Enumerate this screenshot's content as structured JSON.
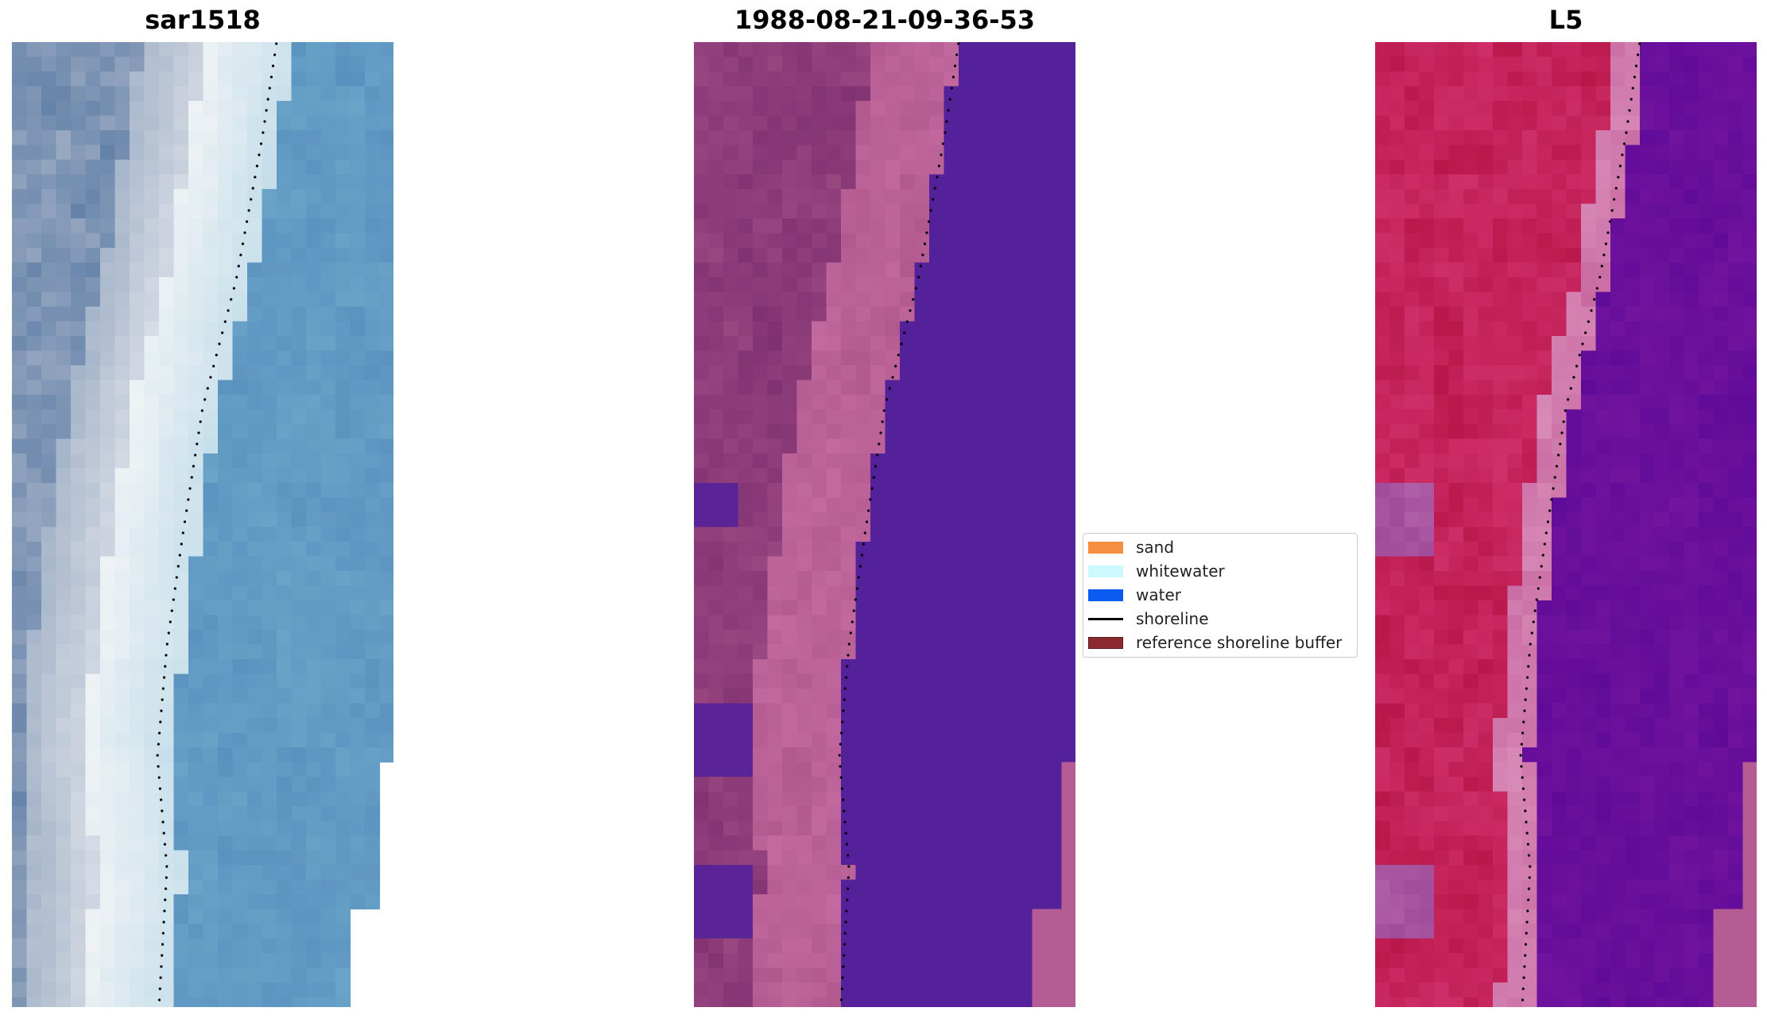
{
  "panels": [
    {
      "title": "sar1518",
      "kind": "rgb"
    },
    {
      "title": "1988-08-21-09-36-53",
      "kind": "classified"
    },
    {
      "title": "L5",
      "kind": "ndwi"
    }
  ],
  "legend": {
    "items": [
      {
        "label": "sand",
        "color": "#f58e3f",
        "type": "patch"
      },
      {
        "label": "whitewater",
        "color": "#ccf9ff",
        "type": "patch"
      },
      {
        "label": "water",
        "color": "#0a5cf0",
        "type": "patch"
      },
      {
        "label": "shoreline",
        "color": "#000000",
        "type": "line"
      },
      {
        "label": "reference shoreline buffer",
        "color": "#8b2a30",
        "type": "patch"
      }
    ]
  },
  "colors": {
    "rgb_water": "#5b93bd",
    "rgb_whitewater": "#e8eef2",
    "rgb_land": "#7f94ac",
    "class_land": "#8a3a74",
    "class_land_light": "#b45c93",
    "class_water": "#55219a",
    "ndwi_land": "#c2184e",
    "ndwi_water": "#6a0fa0",
    "shoreline": "#000000"
  }
}
